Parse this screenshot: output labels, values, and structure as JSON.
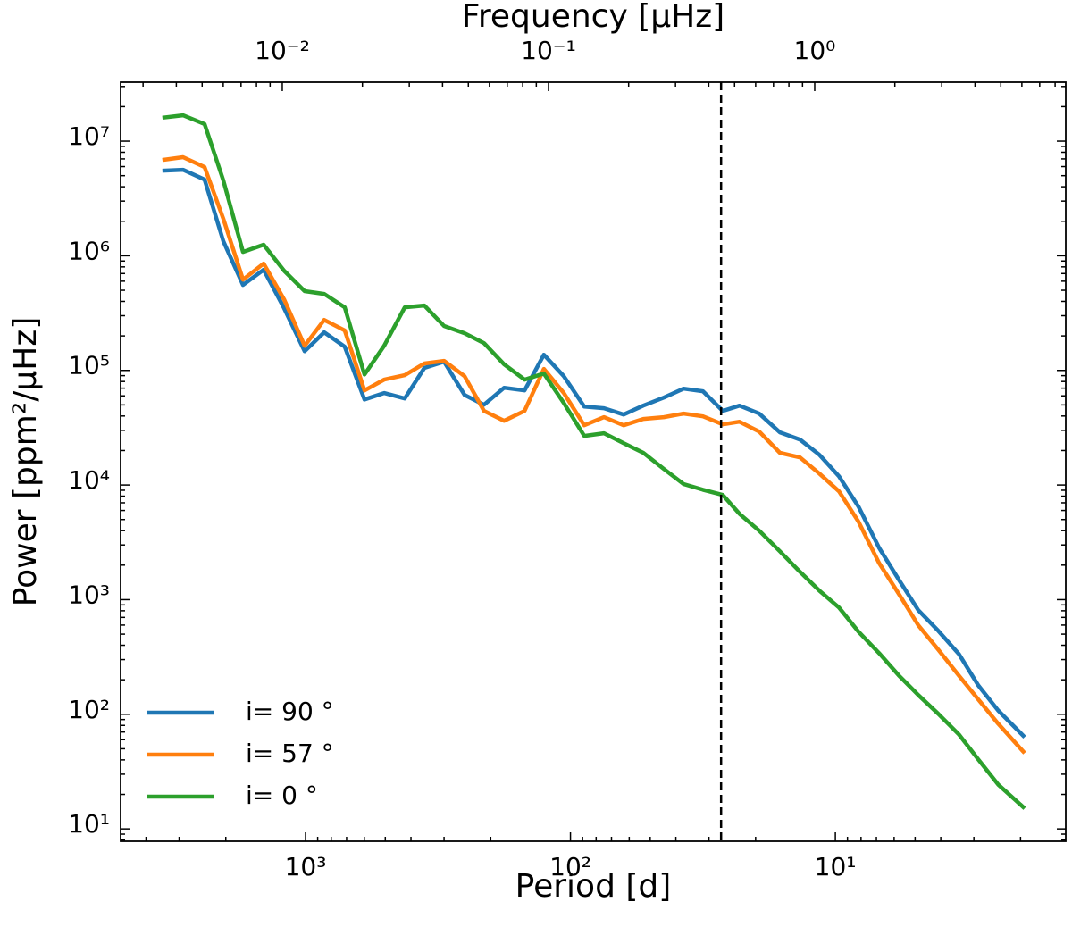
{
  "chart_data": {
    "type": "line",
    "xlabel": "Period [d]",
    "ylabel": "Power [ppm²/μHz]",
    "x2label": "Frequency [μHz]",
    "xscale": "log",
    "yscale": "log",
    "xlim": [
      4990,
      1.35
    ],
    "ylim": [
      7.8,
      32700000
    ],
    "x2lim": [
      0.00247,
      8.77
    ],
    "xticks": [
      {
        "value": 1000,
        "label": "10³"
      },
      {
        "value": 100,
        "label": "10²"
      },
      {
        "value": 10,
        "label": "10¹"
      }
    ],
    "x2ticks": [
      {
        "value": 0.01,
        "label": "10⁻²"
      },
      {
        "value": 0.1,
        "label": "10⁻¹"
      },
      {
        "value": 1,
        "label": "10⁰"
      }
    ],
    "yticks": [
      {
        "value": 10,
        "label": "10¹"
      },
      {
        "value": 100,
        "label": "10²"
      },
      {
        "value": 1000,
        "label": "10³"
      },
      {
        "value": 10000,
        "label": "10⁴"
      },
      {
        "value": 100000,
        "label": "10⁵"
      },
      {
        "value": 1000000,
        "label": "10⁶"
      },
      {
        "value": 10000000,
        "label": "10⁷"
      }
    ],
    "minor_ticks": true,
    "legend": "lower left",
    "vline": {
      "x": 27,
      "color": "#000000",
      "style": "dashed"
    },
    "x": [
      3470,
      2900,
      2405,
      2043,
      1722,
      1440,
      1205,
      1008,
      850,
      711,
      599,
      505,
      422,
      356,
      300,
      251,
      212,
      178,
      149,
      126,
      106,
      88.7,
      74.7,
      63.0,
      53.1,
      44.4,
      37.4,
      31.6,
      26.6,
      23.0,
      19.4,
      16.2,
      13.6,
      11.5,
      9.69,
      8.18,
      6.84,
      5.76,
      4.86,
      4.09,
      3.42,
      2.89,
      2.43,
      1.93
    ],
    "series": [
      {
        "name": "i= 90 °",
        "color": "#1f77b4",
        "values": [
          5530000,
          5630000,
          4620000,
          1340000,
          556000,
          755000,
          349000,
          147000,
          215000,
          161000,
          55800,
          63400,
          56900,
          105000,
          119000,
          61100,
          50200,
          70600,
          66900,
          137000,
          89000,
          48400,
          46800,
          41200,
          49300,
          57900,
          69300,
          65800,
          44300,
          49300,
          42000,
          28800,
          24900,
          18400,
          11900,
          6480,
          2840,
          1490,
          809,
          536,
          336,
          179,
          108,
          63.2
        ]
      },
      {
        "name": "i= 57 °",
        "color": "#ff7f0e",
        "values": [
          6860000,
          7240000,
          5940000,
          2100000,
          619000,
          855000,
          417000,
          164000,
          276000,
          223000,
          66900,
          83000,
          90800,
          115000,
          121000,
          89000,
          44300,
          36300,
          44300,
          103000,
          63400,
          33200,
          39100,
          33200,
          37700,
          39100,
          42000,
          39700,
          33800,
          35700,
          29300,
          19100,
          17400,
          12600,
          8810,
          4790,
          2090,
          1120,
          597,
          367,
          218,
          135,
          82.8,
          45.8
        ]
      },
      {
        "name": "i= 0 °",
        "color": "#2ca02c",
        "values": [
          16000000,
          16800000,
          14100000,
          4540000,
          1080000,
          1250000,
          741000,
          491000,
          465000,
          355000,
          92000,
          164000,
          355000,
          368000,
          244000,
          211000,
          173000,
          113000,
          83000,
          94000,
          52000,
          26800,
          28300,
          23200,
          19100,
          13800,
          10200,
          9100,
          8200,
          5600,
          4000,
          2640,
          1750,
          1200,
          853,
          526,
          342,
          218,
          147,
          101,
          66.8,
          40.4,
          24.4,
          15.1
        ]
      }
    ]
  }
}
